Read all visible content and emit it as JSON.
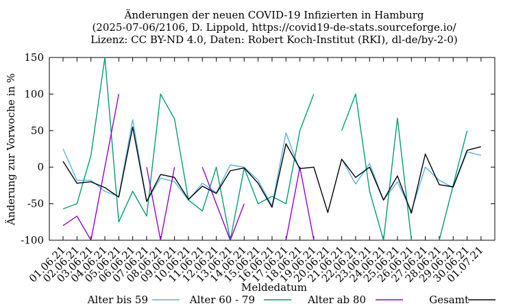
{
  "chart_data": {
    "type": "line",
    "title_lines": [
      "Änderungen der neuen COVID-19 Infizierten in Hamburg",
      "(2025-07-06/2106, D. Lippold, https://covid19-de-stats.sourceforge.io/",
      "Lizenz: CC BY-ND 4.0, Daten: Robert Koch-Institut (RKI), dl-de/by-2-0)"
    ],
    "xlabel": "Meldedatum",
    "ylabel": "Änderung zur Vorwoche in %",
    "ylim": [
      -100,
      150
    ],
    "yticks": [
      -100,
      -50,
      0,
      50,
      100,
      150
    ],
    "ytick_labels": [
      "-100",
      "-50",
      "0",
      "50",
      "100",
      "150"
    ],
    "grid": false,
    "legend_position": "bottom",
    "categories": [
      "01.06.21",
      "02.06.21",
      "03.06.21",
      "04.06.21",
      "05.06.21",
      "06.06.21",
      "07.06.21",
      "08.06.21",
      "09.06.21",
      "10.06.21",
      "11.06.21",
      "12.06.21",
      "13.06.21",
      "14.06.21",
      "15.06.21",
      "16.06.21",
      "17.06.21",
      "18.06.21",
      "19.06.21",
      "20.06.21",
      "21.06.21",
      "22.06.21",
      "23.06.21",
      "24.06.21",
      "25.06.21",
      "26.06.21",
      "27.06.21",
      "28.06.21",
      "29.06.21",
      "30.06.21",
      "01.07.21"
    ],
    "series": [
      {
        "name": "Alter bis 59",
        "color": "#56b4e9",
        "values": [
          25,
          -18,
          -18,
          -33,
          -40,
          65,
          -47,
          -15,
          -20,
          -45,
          -22,
          -35,
          3,
          0,
          -18,
          -53,
          47,
          -5,
          null,
          null,
          11,
          -23,
          5,
          -45,
          -20,
          -60,
          0,
          -18,
          -28,
          21,
          16
        ]
      },
      {
        "name": "Alter 60 - 79",
        "color": "#009e73",
        "values": [
          -57,
          -50,
          16,
          150,
          -75,
          -33,
          -67,
          100,
          66,
          -45,
          -60,
          0,
          -100,
          -1,
          -50,
          -40,
          -50,
          50,
          100,
          null,
          50,
          100,
          -33,
          -100,
          67,
          -100,
          null,
          -100,
          -25,
          50,
          null
        ]
      },
      {
        "name": "Alter ab 80",
        "color": "#9400d3",
        "values": [
          -80,
          -67,
          -100,
          0,
          100,
          null,
          0,
          -100,
          0,
          null,
          0,
          -50,
          -100,
          -50,
          null,
          null,
          -100,
          0,
          -100,
          null,
          null,
          null,
          null,
          null,
          null,
          null,
          null,
          null,
          null,
          null,
          null
        ]
      },
      {
        "name": "Gesamt",
        "color": "#000000",
        "values": [
          8,
          -22,
          -20,
          -28,
          -41,
          55,
          -47,
          -10,
          -14,
          -44,
          -26,
          -36,
          -5,
          -1,
          -22,
          -55,
          32,
          -2,
          0,
          -62,
          11,
          -14,
          0,
          -45,
          -12,
          -63,
          18,
          -24,
          -27,
          23,
          28
        ]
      }
    ]
  }
}
